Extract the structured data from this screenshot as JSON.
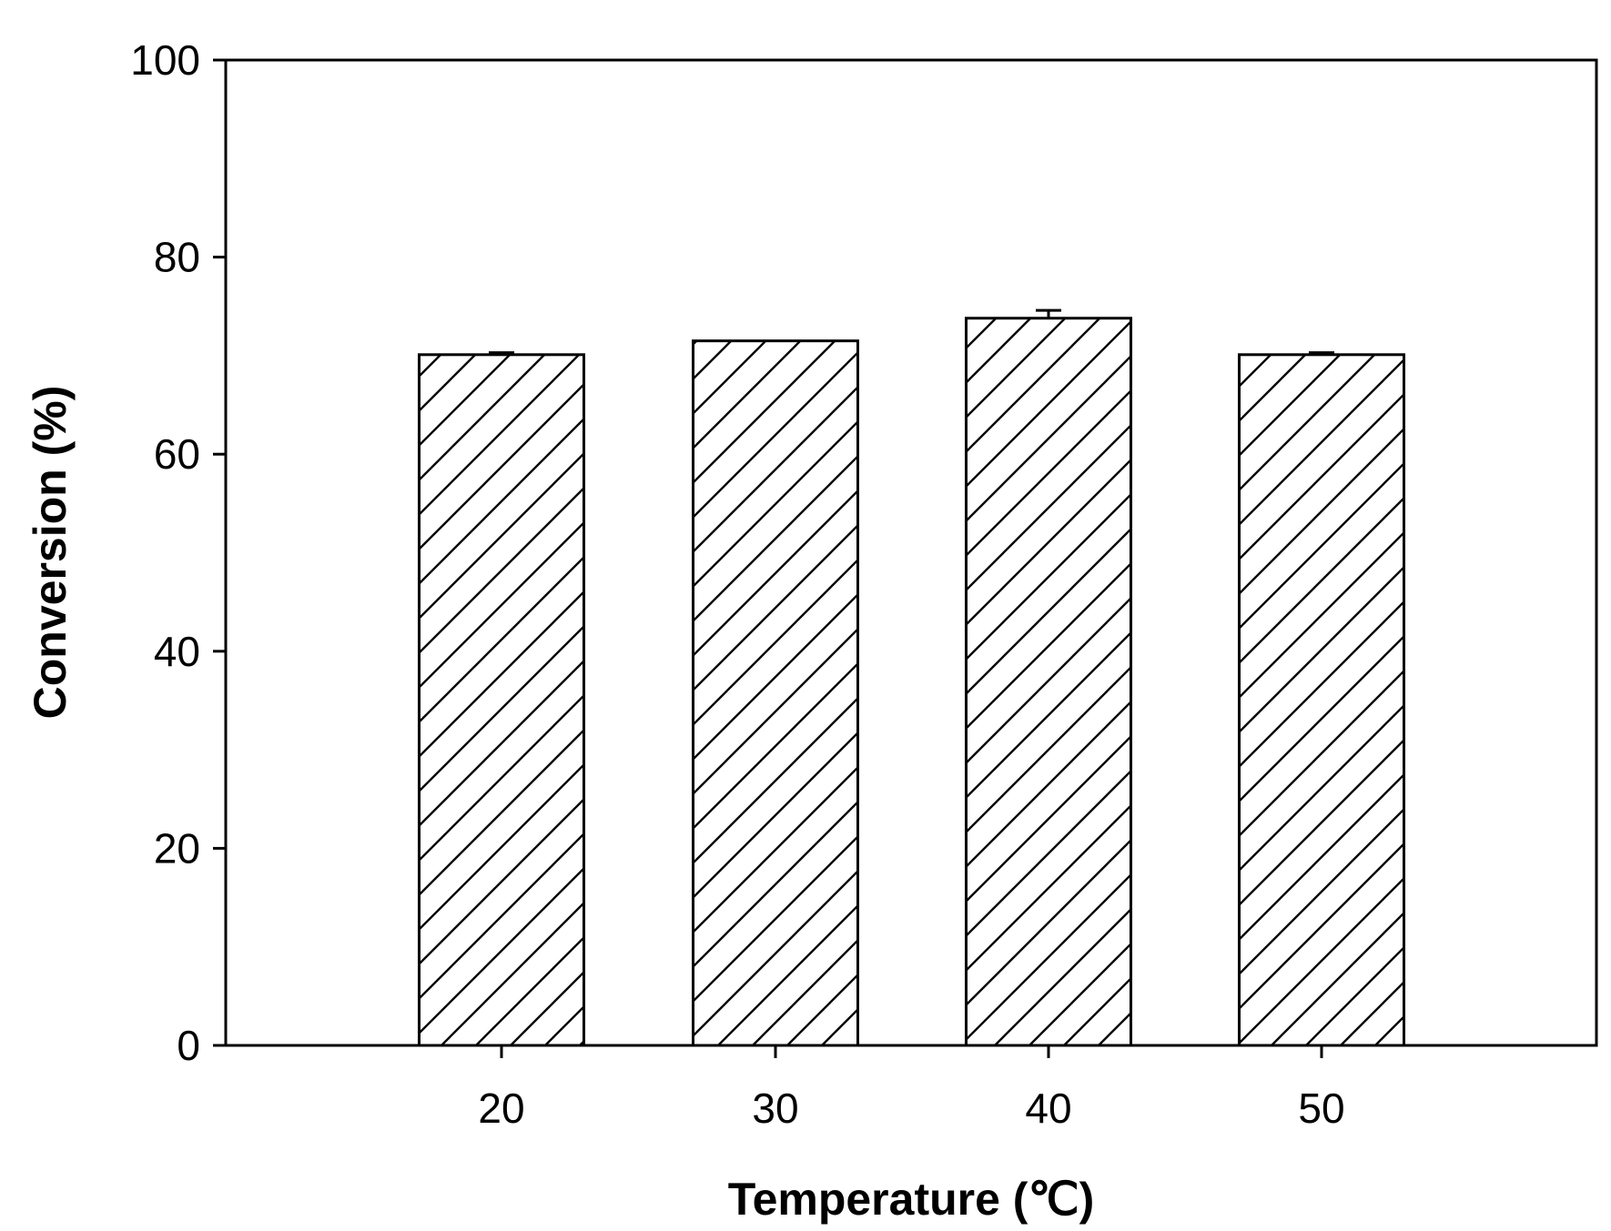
{
  "chart_data": {
    "type": "bar",
    "title": "",
    "xlabel": "Temperature (℃)",
    "ylabel": "Conversion (%)",
    "categories": [
      "20",
      "30",
      "40",
      "50"
    ],
    "values": [
      70.1,
      71.5,
      73.8,
      70.1
    ],
    "error": [
      0.2,
      0.0,
      0.8,
      0.2
    ],
    "ylim": [
      0,
      100
    ],
    "yticks": [
      0,
      20,
      40,
      60,
      80,
      100
    ],
    "ytick_labels": [
      "0",
      "20",
      "40",
      "60",
      "80",
      "100"
    ],
    "grid": false,
    "bar_fill": "diagonal-hatch",
    "colors": {
      "bar_stroke": "#000000",
      "bar_fill": "#ffffff",
      "axis": "#000000"
    }
  }
}
